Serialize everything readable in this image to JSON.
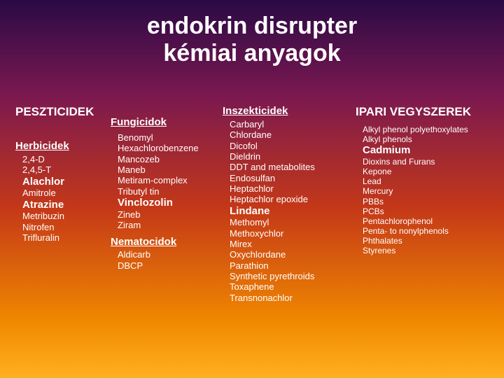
{
  "title_line1": "endokrin disrupter",
  "title_line2": "kémiai anyagok",
  "pesticides": {
    "header": "PESZTICIDEK",
    "herbicides": {
      "header": "Herbicidek",
      "items": [
        "2,4-D",
        "2,4,5-T",
        "Alachlor",
        "Amitrole",
        "Atrazine",
        "Metribuzin",
        "Nitrofen",
        "Trifluralin"
      ],
      "bold_idx": [
        2,
        4
      ]
    },
    "fungicides": {
      "header": "Fungicidok",
      "items": [
        "Benomyl",
        "Hexachlorobenzene",
        "Mancozeb",
        "Maneb",
        "Metiram-complex",
        "Tributyl tin",
        "Vinclozolin",
        "Zineb",
        "Ziram"
      ],
      "bold_idx": [
        6
      ]
    },
    "nematocides": {
      "header": "Nematocidok",
      "items": [
        "Aldicarb",
        "DBCP"
      ]
    },
    "insecticides": {
      "header": "Inszekticidek",
      "items": [
        "Carbaryl",
        "Chlordane",
        "Dicofol",
        "Dieldrin",
        "DDT and metabolites",
        "Endosulfan",
        "Heptachlor",
        "Heptachlor epoxide",
        "Lindane",
        "Methomyl",
        "Methoxychlor",
        "Mirex",
        "Oxychlordane",
        "Parathion",
        "Synthetic pyrethroids",
        "Toxaphene",
        "Transnonachlor"
      ],
      "bold_idx": [
        8
      ]
    }
  },
  "industrial": {
    "header": "IPARI VEGYSZEREK",
    "items": [
      "Alkyl phenol polyethoxylates",
      "Alkyl phenols",
      "Cadmium",
      "Dioxins and Furans",
      "Kepone",
      "Lead",
      "Mercury",
      "PBBs",
      "PCBs",
      "Pentachlorophenol",
      "Penta- to nonylphenols",
      "Phthalates",
      "Styrenes"
    ],
    "bold_idx": [
      2
    ]
  }
}
